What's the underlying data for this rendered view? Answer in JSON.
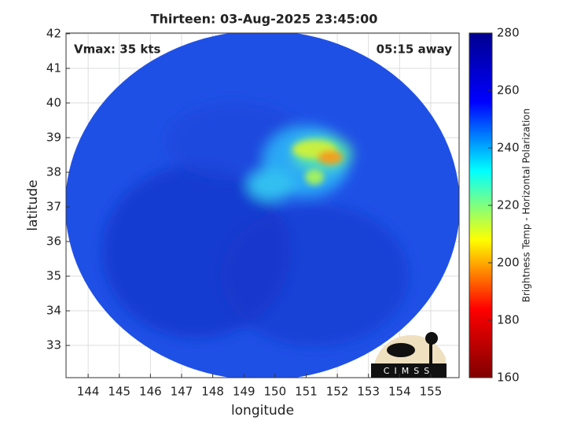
{
  "chart_data": {
    "type": "image-map",
    "title": "Thirteen: 03-Aug-2025 23:45:00",
    "xlabel": "longitude",
    "ylabel": "latitude",
    "xlim": [
      143.29,
      155.91
    ],
    "xticks": [
      144,
      145,
      146,
      147,
      148,
      149,
      150,
      151,
      152,
      153,
      154,
      155
    ],
    "ylim": [
      32.07,
      42.02
    ],
    "yticks": [
      33,
      34,
      35,
      36,
      37,
      38,
      39,
      40,
      41,
      42
    ],
    "grid": true,
    "annotations": {
      "left": "Vmax: 35 kts",
      "right": "05:15 away"
    },
    "logo": "CIMSS",
    "colorbar": {
      "label": "Brightness Temp - Horizontal Polarization",
      "lim": [
        160,
        280
      ],
      "ticks": [
        160,
        180,
        200,
        220,
        240,
        260,
        280
      ],
      "colors": [
        "#800000",
        "#ff0000",
        "#ffff00",
        "#00ffff",
        "#0000ff",
        "#00008f"
      ]
    }
  }
}
